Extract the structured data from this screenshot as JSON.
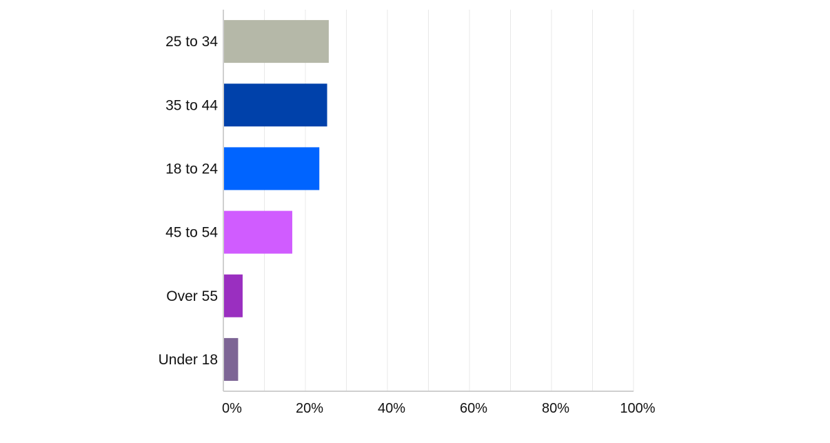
{
  "chart_data": {
    "type": "bar",
    "orientation": "horizontal",
    "categories": [
      "25 to 34",
      "35 to 44",
      "18 to 24",
      "45 to 54",
      "Over 55",
      "Under 18"
    ],
    "values": [
      25.7,
      25.3,
      23.4,
      16.8,
      4.7,
      3.6
    ],
    "colors": [
      "#b5b8a8",
      "#0041aa",
      "#0064ff",
      "#d05cff",
      "#9a2fc0",
      "#7d6595"
    ],
    "x_ticks": [
      "0%",
      "20%",
      "40%",
      "60%",
      "80%",
      "100%"
    ],
    "xlim": [
      0,
      100
    ],
    "grid": true,
    "legend": "none"
  }
}
